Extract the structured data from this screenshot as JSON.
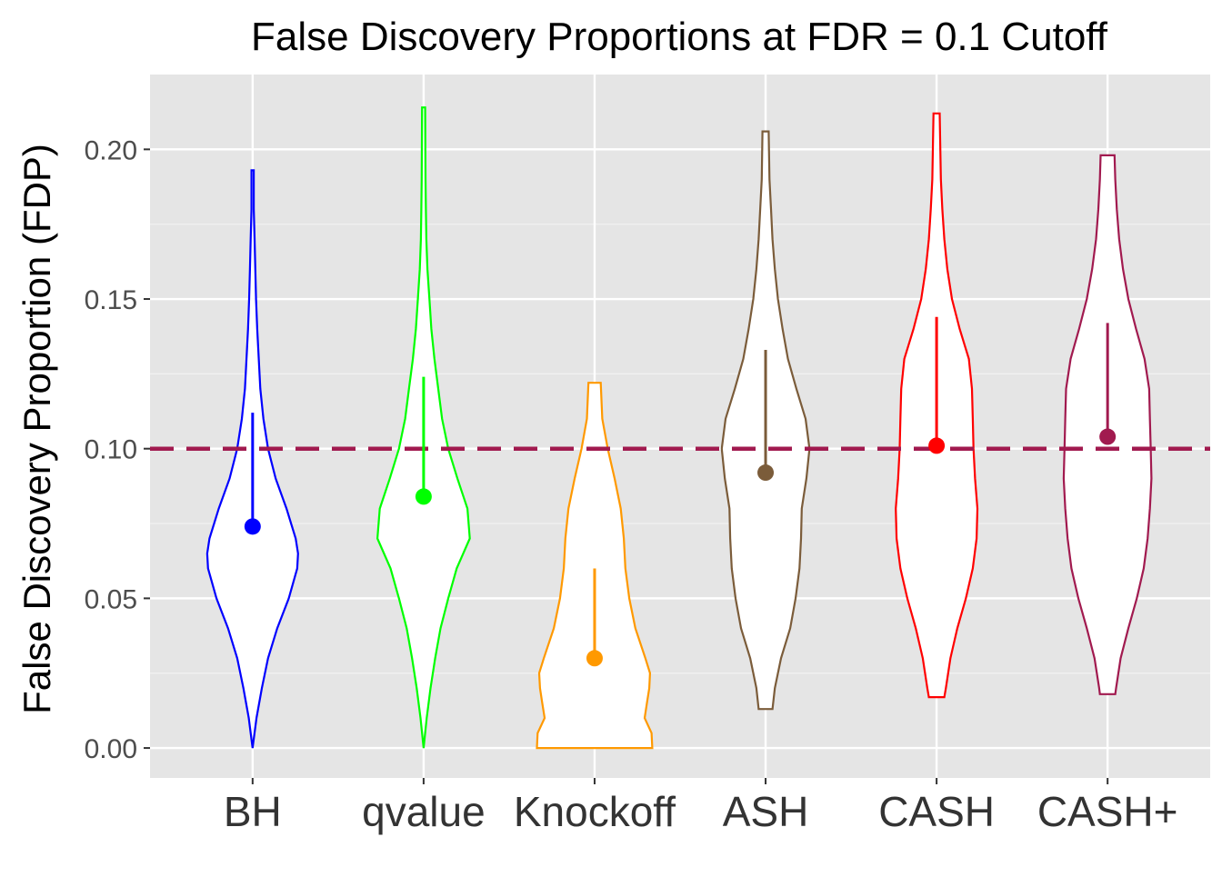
{
  "chart_data": {
    "type": "violin",
    "title": "False Discovery Proportions at FDR = 0.1 Cutoff",
    "xlabel": "",
    "ylabel": "False Discovery Proportion (FDP)",
    "ylim": [
      -0.01,
      0.225
    ],
    "yticks": [
      "0.00",
      "0.05",
      "0.10",
      "0.15",
      "0.20"
    ],
    "ytick_values": [
      0.0,
      0.05,
      0.1,
      0.15,
      0.2
    ],
    "grid": true,
    "reference_line": {
      "y": 0.1,
      "style": "dashed",
      "color": "#a11a4f"
    },
    "categories": [
      "BH",
      "qvalue",
      "Knockoff",
      "ASH",
      "CASH",
      "CASH+"
    ],
    "series": [
      {
        "category": "BH",
        "color": "#0000ff",
        "min": 0.0,
        "max": 0.193,
        "mean": 0.074,
        "upper": 0.112,
        "profile": [
          [
            0.0,
            0.0
          ],
          [
            0.01,
            0.05
          ],
          [
            0.02,
            0.12
          ],
          [
            0.03,
            0.2
          ],
          [
            0.04,
            0.32
          ],
          [
            0.05,
            0.47
          ],
          [
            0.06,
            0.58
          ],
          [
            0.065,
            0.59
          ],
          [
            0.07,
            0.56
          ],
          [
            0.08,
            0.44
          ],
          [
            0.09,
            0.3
          ],
          [
            0.1,
            0.2
          ],
          [
            0.11,
            0.14
          ],
          [
            0.12,
            0.1
          ],
          [
            0.13,
            0.08
          ],
          [
            0.14,
            0.06
          ],
          [
            0.15,
            0.045
          ],
          [
            0.16,
            0.035
          ],
          [
            0.17,
            0.025
          ],
          [
            0.18,
            0.015
          ],
          [
            0.193,
            0.015
          ]
        ]
      },
      {
        "category": "qvalue",
        "color": "#00ff00",
        "min": 0.0,
        "max": 0.214,
        "mean": 0.084,
        "upper": 0.124,
        "profile": [
          [
            0.0,
            0.0
          ],
          [
            0.01,
            0.04
          ],
          [
            0.02,
            0.09
          ],
          [
            0.03,
            0.15
          ],
          [
            0.04,
            0.22
          ],
          [
            0.05,
            0.32
          ],
          [
            0.06,
            0.43
          ],
          [
            0.07,
            0.6
          ],
          [
            0.08,
            0.57
          ],
          [
            0.09,
            0.44
          ],
          [
            0.1,
            0.32
          ],
          [
            0.11,
            0.24
          ],
          [
            0.12,
            0.19
          ],
          [
            0.13,
            0.14
          ],
          [
            0.14,
            0.1
          ],
          [
            0.15,
            0.075
          ],
          [
            0.16,
            0.05
          ],
          [
            0.17,
            0.035
          ],
          [
            0.18,
            0.03
          ],
          [
            0.19,
            0.025
          ],
          [
            0.214,
            0.02
          ]
        ]
      },
      {
        "category": "Knockoff",
        "color": "#ff9900",
        "min": 0.0,
        "max": 0.122,
        "mean": 0.03,
        "upper": 0.06,
        "profile": [
          [
            0.0,
            0.75
          ],
          [
            0.005,
            0.74
          ],
          [
            0.01,
            0.65
          ],
          [
            0.015,
            0.68
          ],
          [
            0.02,
            0.71
          ],
          [
            0.025,
            0.72
          ],
          [
            0.03,
            0.66
          ],
          [
            0.04,
            0.53
          ],
          [
            0.05,
            0.45
          ],
          [
            0.06,
            0.4
          ],
          [
            0.07,
            0.38
          ],
          [
            0.08,
            0.34
          ],
          [
            0.09,
            0.26
          ],
          [
            0.1,
            0.17
          ],
          [
            0.11,
            0.1
          ],
          [
            0.122,
            0.08
          ]
        ]
      },
      {
        "category": "ASH",
        "color": "#7b5c3a",
        "min": 0.013,
        "max": 0.206,
        "mean": 0.092,
        "upper": 0.133,
        "profile": [
          [
            0.013,
            0.09
          ],
          [
            0.02,
            0.12
          ],
          [
            0.03,
            0.2
          ],
          [
            0.04,
            0.32
          ],
          [
            0.05,
            0.39
          ],
          [
            0.06,
            0.44
          ],
          [
            0.07,
            0.46
          ],
          [
            0.08,
            0.47
          ],
          [
            0.09,
            0.53
          ],
          [
            0.1,
            0.57
          ],
          [
            0.11,
            0.52
          ],
          [
            0.12,
            0.4
          ],
          [
            0.13,
            0.29
          ],
          [
            0.14,
            0.22
          ],
          [
            0.15,
            0.16
          ],
          [
            0.16,
            0.12
          ],
          [
            0.17,
            0.09
          ],
          [
            0.18,
            0.07
          ],
          [
            0.19,
            0.05
          ],
          [
            0.206,
            0.04
          ]
        ]
      },
      {
        "category": "CASH",
        "color": "#ff0000",
        "min": 0.017,
        "max": 0.212,
        "mean": 0.101,
        "upper": 0.144,
        "profile": [
          [
            0.017,
            0.1
          ],
          [
            0.02,
            0.12
          ],
          [
            0.03,
            0.18
          ],
          [
            0.04,
            0.27
          ],
          [
            0.05,
            0.38
          ],
          [
            0.06,
            0.47
          ],
          [
            0.07,
            0.52
          ],
          [
            0.08,
            0.53
          ],
          [
            0.09,
            0.5
          ],
          [
            0.1,
            0.48
          ],
          [
            0.11,
            0.47
          ],
          [
            0.12,
            0.46
          ],
          [
            0.13,
            0.42
          ],
          [
            0.14,
            0.3
          ],
          [
            0.15,
            0.2
          ],
          [
            0.16,
            0.14
          ],
          [
            0.17,
            0.1
          ],
          [
            0.18,
            0.075
          ],
          [
            0.19,
            0.055
          ],
          [
            0.212,
            0.04
          ]
        ]
      },
      {
        "category": "CASH+",
        "color": "#a11a4f",
        "min": 0.018,
        "max": 0.198,
        "mean": 0.104,
        "upper": 0.142,
        "profile": [
          [
            0.018,
            0.1
          ],
          [
            0.02,
            0.11
          ],
          [
            0.03,
            0.17
          ],
          [
            0.04,
            0.27
          ],
          [
            0.05,
            0.38
          ],
          [
            0.06,
            0.47
          ],
          [
            0.07,
            0.52
          ],
          [
            0.08,
            0.55
          ],
          [
            0.09,
            0.57
          ],
          [
            0.1,
            0.56
          ],
          [
            0.11,
            0.55
          ],
          [
            0.12,
            0.54
          ],
          [
            0.13,
            0.48
          ],
          [
            0.14,
            0.37
          ],
          [
            0.15,
            0.27
          ],
          [
            0.16,
            0.2
          ],
          [
            0.17,
            0.15
          ],
          [
            0.18,
            0.12
          ],
          [
            0.19,
            0.1
          ],
          [
            0.198,
            0.09
          ]
        ]
      }
    ]
  }
}
